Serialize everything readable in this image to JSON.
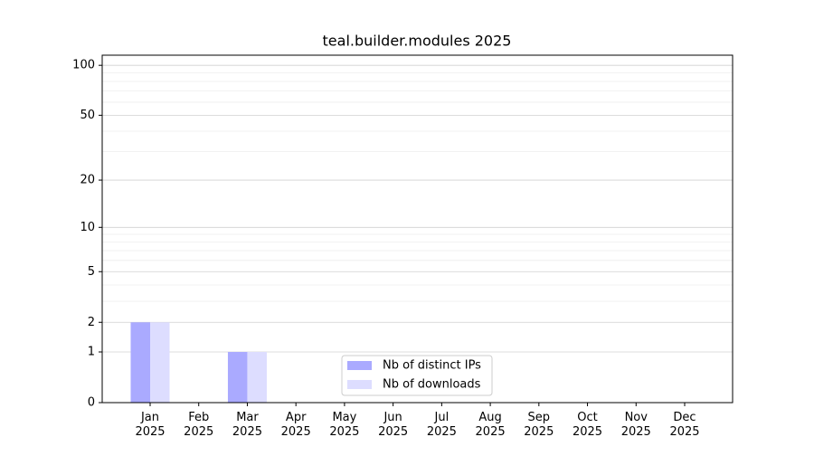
{
  "chart_data": {
    "type": "bar",
    "title": "teal.builder.modules 2025",
    "categories": [
      "Jan 2025",
      "Feb 2025",
      "Mar 2025",
      "Apr 2025",
      "May 2025",
      "Jun 2025",
      "Jul 2025",
      "Aug 2025",
      "Sep 2025",
      "Oct 2025",
      "Nov 2025",
      "Dec 2025"
    ],
    "series": [
      {
        "name": "Nb of distinct IPs",
        "color": "#aaaaff",
        "values": [
          2,
          0,
          1,
          0,
          0,
          0,
          0,
          0,
          0,
          0,
          0,
          0
        ]
      },
      {
        "name": "Nb of downloads",
        "color": "#ddddff",
        "values": [
          2,
          0,
          1,
          0,
          0,
          0,
          0,
          0,
          0,
          0,
          0,
          0
        ]
      }
    ],
    "yscale": "log1p",
    "ylim": [
      0,
      115
    ],
    "yticks": [
      0,
      1,
      2,
      5,
      10,
      20,
      50,
      100
    ],
    "yminorticks": [
      3,
      4,
      6,
      7,
      8,
      9,
      30,
      40,
      60,
      70,
      80,
      90
    ],
    "grid": true,
    "legend": "lower center"
  }
}
